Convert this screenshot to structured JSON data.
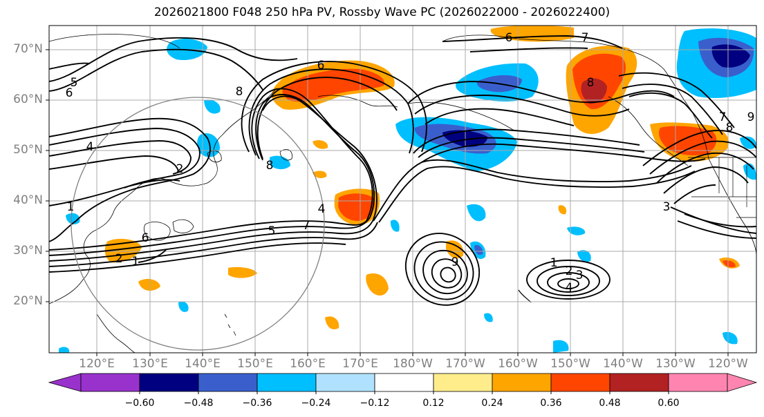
{
  "title": "2026021800 F048 250 hPa PV, Rossby Wave PC (2026022000 - 2026022400)",
  "lat_labels": [
    "70°N",
    "60°N",
    "50°N",
    "40°N",
    "30°N",
    "20°N"
  ],
  "lon_labels": [
    "120°E",
    "130°E",
    "140°E",
    "150°E",
    "160°E",
    "170°E",
    "180°W",
    "170°W",
    "160°W",
    "150°W",
    "140°W",
    "130°W",
    "120°W"
  ],
  "colorbar": {
    "ticks": [
      "−0.60",
      "−0.48",
      "−0.36",
      "−0.24",
      "−0.12",
      "0.12",
      "0.24",
      "0.36",
      "0.48",
      "0.60"
    ],
    "colors": [
      "#9932cc",
      "#000080",
      "#3a5fcd",
      "#00bfff",
      "#b0e2ff",
      "#ffffff",
      "#ffec8b",
      "#ffa500",
      "#ff4500",
      "#b22222",
      "#ff85b0"
    ]
  },
  "contour_labels": [
    "5",
    "6",
    "4",
    "2",
    "1",
    "6",
    "8",
    "6",
    "7",
    "5",
    "4",
    "6",
    "7",
    "8",
    "8",
    "7",
    "9",
    "8",
    "3",
    "1",
    "2",
    "3",
    "4",
    "1",
    "2",
    "9"
  ]
}
